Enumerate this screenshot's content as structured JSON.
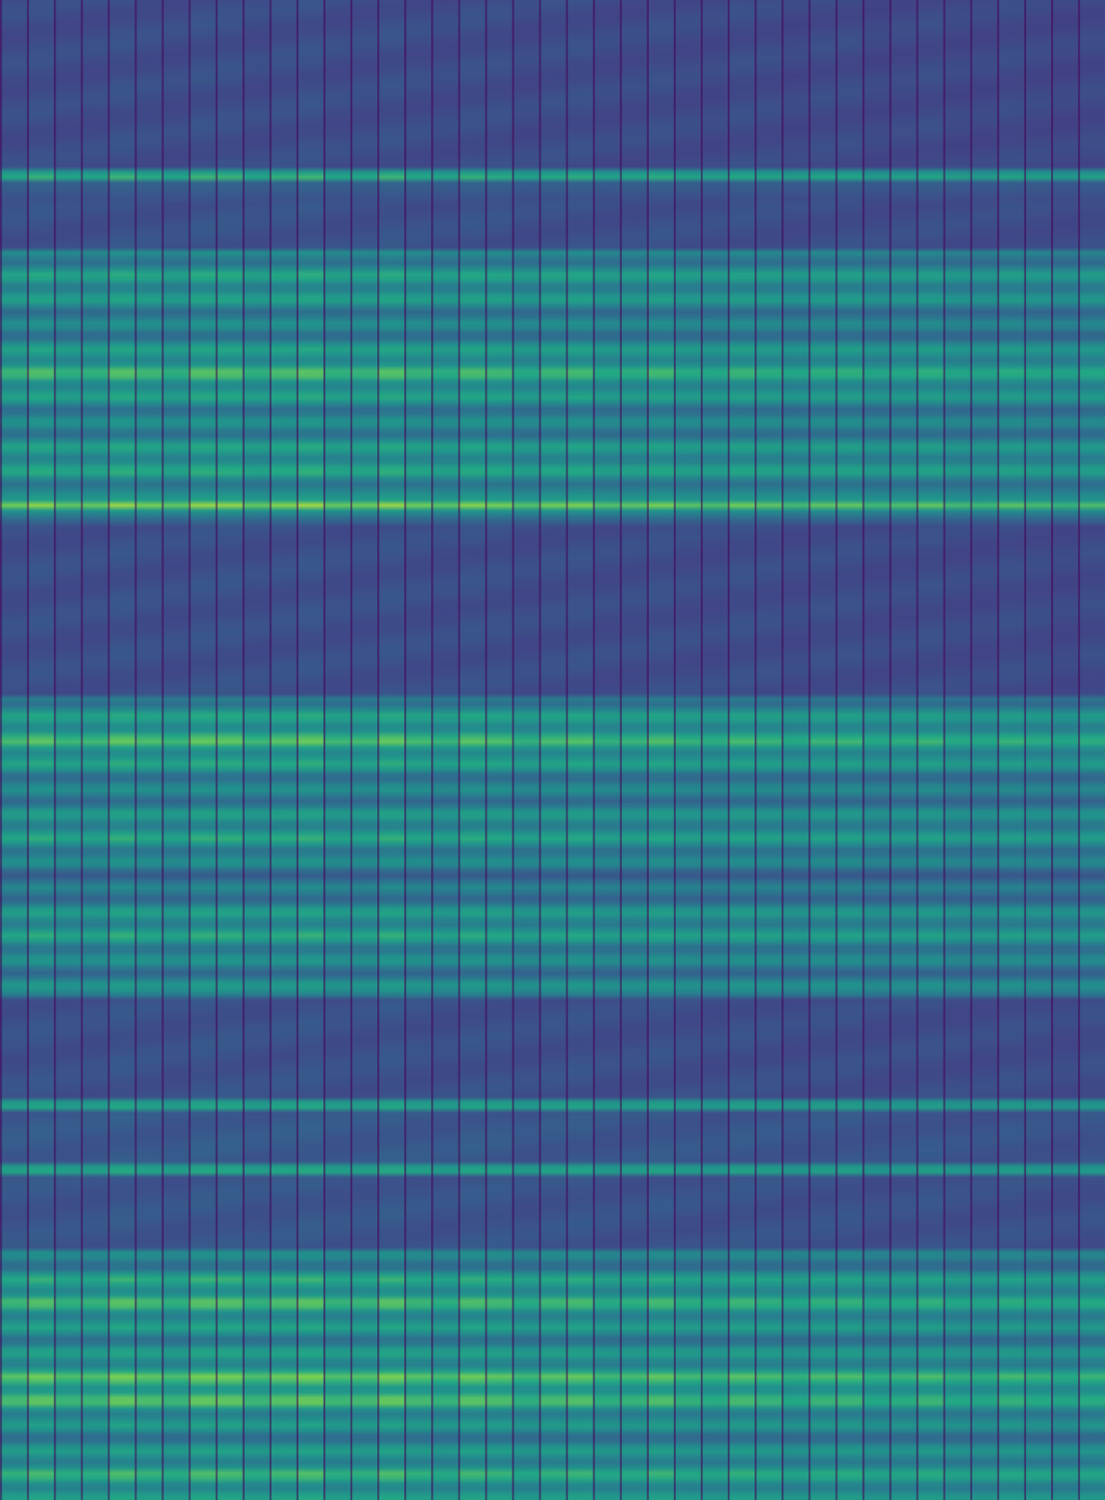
{
  "chart_data": {
    "type": "heatmap",
    "title": "",
    "xlabel": "",
    "ylabel": "",
    "colormap": "viridis",
    "axes_visible": false,
    "grid": false,
    "legend": "none",
    "columns": 41,
    "rows": 1674,
    "value_range": [
      0,
      1
    ],
    "column_profile_note_free": true,
    "row_bands": [
      {
        "start": 0,
        "end": 190,
        "level": 0.32,
        "type": "flat"
      },
      {
        "start": 190,
        "end": 202,
        "level": 0.95,
        "type": "stripe"
      },
      {
        "start": 202,
        "end": 225,
        "level": 0.45,
        "type": "fade"
      },
      {
        "start": 225,
        "end": 278,
        "level": 0.34,
        "type": "flat"
      },
      {
        "start": 278,
        "end": 555,
        "level": 0.88,
        "type": "texture"
      },
      {
        "start": 555,
        "end": 572,
        "level": 0.98,
        "type": "stripe"
      },
      {
        "start": 572,
        "end": 588,
        "level": 0.62,
        "type": "fade"
      },
      {
        "start": 588,
        "end": 780,
        "level": 0.33,
        "type": "flat"
      },
      {
        "start": 780,
        "end": 1116,
        "level": 0.9,
        "type": "texture"
      },
      {
        "start": 1116,
        "end": 1227,
        "level": 0.34,
        "type": "flat"
      },
      {
        "start": 1227,
        "end": 1240,
        "level": 0.92,
        "type": "stripe"
      },
      {
        "start": 1240,
        "end": 1299,
        "level": 0.38,
        "type": "flat"
      },
      {
        "start": 1299,
        "end": 1312,
        "level": 0.93,
        "type": "stripe"
      },
      {
        "start": 1312,
        "end": 1398,
        "level": 0.36,
        "type": "flat"
      },
      {
        "start": 1398,
        "end": 1674,
        "level": 0.94,
        "type": "texture"
      }
    ]
  }
}
